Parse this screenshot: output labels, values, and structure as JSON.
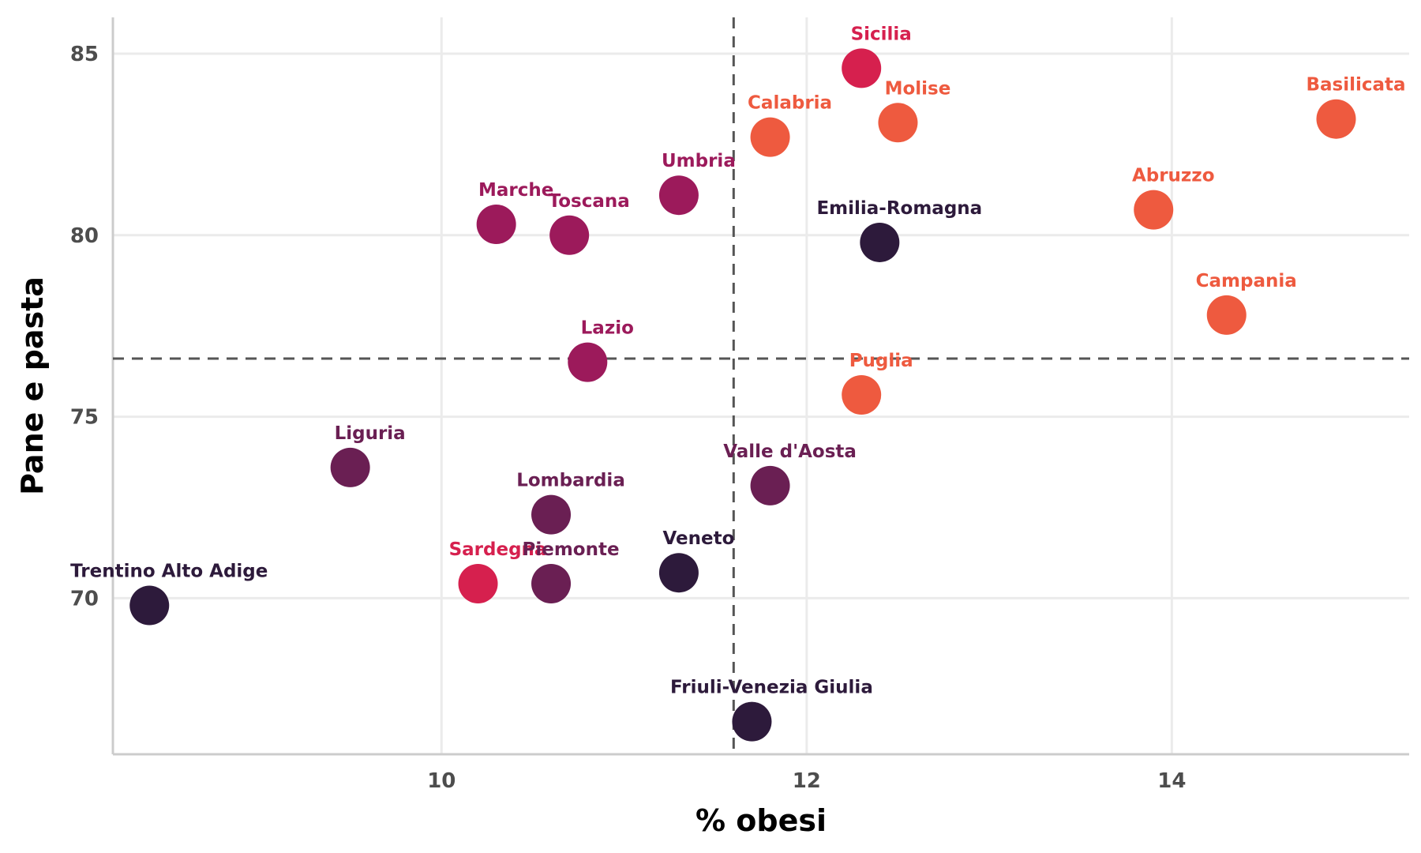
{
  "chart_data": {
    "type": "scatter",
    "title": "",
    "xlabel": "% obesi",
    "ylabel": "Pane e pasta",
    "xlim": [
      8.2,
      15.3
    ],
    "ylim": [
      65.7,
      86
    ],
    "xticks": [
      10,
      12,
      14
    ],
    "yticks": [
      70,
      75,
      80,
      85
    ],
    "grid": true,
    "legend": "none",
    "reference_lines": {
      "x": 11.6,
      "y": 76.6
    },
    "colors": {
      "dark": "#2d1a3b",
      "purple": "#6a1f53",
      "magenta": "#9c1a5b",
      "crimson": "#d6204e",
      "orange": "#ee5a3f"
    },
    "points": [
      {
        "label": "Sicilia",
        "x": 12.3,
        "y": 84.6,
        "color": "#d6204e"
      },
      {
        "label": "Molise",
        "x": 12.5,
        "y": 83.1,
        "color": "#ee5a3f"
      },
      {
        "label": "Calabria",
        "x": 11.8,
        "y": 82.7,
        "color": "#ee5a3f"
      },
      {
        "label": "Basilicata",
        "x": 14.9,
        "y": 83.2,
        "color": "#ee5a3f"
      },
      {
        "label": "Umbria",
        "x": 11.3,
        "y": 81.1,
        "color": "#9c1a5b"
      },
      {
        "label": "Marche",
        "x": 10.3,
        "y": 80.3,
        "color": "#9c1a5b"
      },
      {
        "label": "Toscana",
        "x": 10.7,
        "y": 80.0,
        "color": "#9c1a5b"
      },
      {
        "label": "Emilia-Romagna",
        "x": 12.4,
        "y": 79.8,
        "color": "#2d1a3b"
      },
      {
        "label": "Abruzzo",
        "x": 13.9,
        "y": 80.7,
        "color": "#ee5a3f"
      },
      {
        "label": "Campania",
        "x": 14.3,
        "y": 77.8,
        "color": "#ee5a3f"
      },
      {
        "label": "Lazio",
        "x": 10.8,
        "y": 76.5,
        "color": "#9c1a5b"
      },
      {
        "label": "Puglia",
        "x": 12.3,
        "y": 75.6,
        "color": "#ee5a3f"
      },
      {
        "label": "Liguria",
        "x": 9.5,
        "y": 73.6,
        "color": "#6a1f53"
      },
      {
        "label": "Valle d'Aosta",
        "x": 11.8,
        "y": 73.1,
        "color": "#6a1f53"
      },
      {
        "label": "Lombardia",
        "x": 10.6,
        "y": 72.3,
        "color": "#6a1f53"
      },
      {
        "label": "Sardegna",
        "x": 10.2,
        "y": 70.4,
        "color": "#d6204e"
      },
      {
        "label": "Piemonte",
        "x": 10.6,
        "y": 70.4,
        "color": "#6a1f53"
      },
      {
        "label": "Veneto",
        "x": 11.3,
        "y": 70.7,
        "color": "#2d1a3b"
      },
      {
        "label": "Trentino Alto Adige",
        "x": 8.4,
        "y": 69.8,
        "color": "#2d1a3b"
      },
      {
        "label": "Friuli-Venezia Giulia",
        "x": 11.7,
        "y": 66.6,
        "color": "#2d1a3b"
      }
    ]
  }
}
